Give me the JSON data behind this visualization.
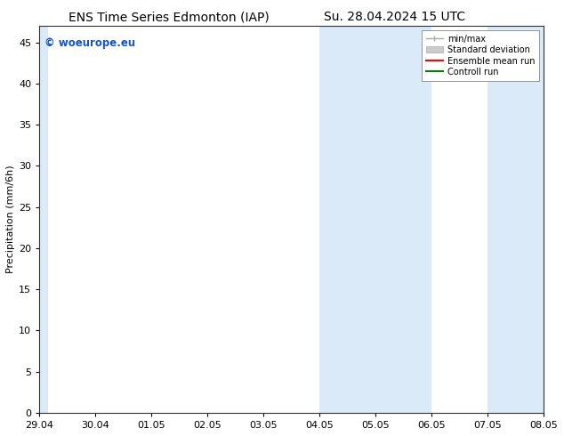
{
  "title_left": "ENS Time Series Edmonton (IAP)",
  "title_right": "Su. 28.04.2024 15 UTC",
  "ylabel": "Precipitation (mm/6h)",
  "xlim_start": 0,
  "xlim_end": 9,
  "ylim": [
    0,
    47
  ],
  "yticks": [
    0,
    5,
    10,
    15,
    20,
    25,
    30,
    35,
    40,
    45
  ],
  "xtick_labels": [
    "29.04",
    "30.04",
    "01.05",
    "02.05",
    "03.05",
    "04.05",
    "05.05",
    "06.05",
    "07.05",
    "08.05"
  ],
  "background_color": "#ffffff",
  "plot_bg_color": "#ffffff",
  "shaded_regions": [
    {
      "xstart": -0.05,
      "xend": 0.15,
      "color": "#daeaf8"
    },
    {
      "xstart": 5.0,
      "xend": 5.5,
      "color": "#daeaf8"
    },
    {
      "xstart": 5.5,
      "xend": 7.0,
      "color": "#daeaf8"
    },
    {
      "xstart": 8.0,
      "xend": 8.5,
      "color": "#daeaf8"
    },
    {
      "xstart": 8.5,
      "xend": 9.05,
      "color": "#daeaf8"
    }
  ],
  "legend_items": [
    {
      "label": "min/max",
      "color": "#aaaaaa",
      "lw": 1.0
    },
    {
      "label": "Standard deviation",
      "color": "#cccccc",
      "lw": 6
    },
    {
      "label": "Ensemble mean run",
      "color": "#ff0000",
      "lw": 1.5
    },
    {
      "label": "Controll run",
      "color": "#008000",
      "lw": 1.5
    }
  ],
  "watermark_text": "© woeurope.eu",
  "watermark_color": "#1155cc",
  "title_fontsize": 10,
  "axis_label_fontsize": 8,
  "tick_fontsize": 8,
  "legend_fontsize": 7
}
